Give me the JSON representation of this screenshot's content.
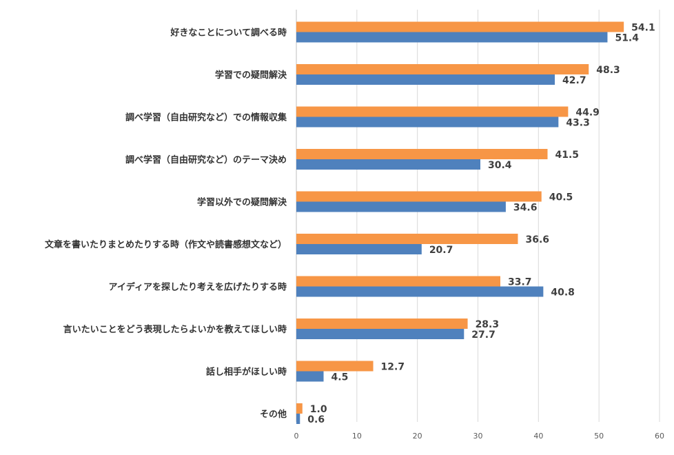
{
  "chart_data": {
    "type": "bar",
    "orientation": "horizontal",
    "title": "",
    "xlabel": "",
    "ylabel": "",
    "xlim": [
      0,
      60
    ],
    "x_ticks": [
      0,
      10,
      20,
      30,
      40,
      50,
      60
    ],
    "grid": true,
    "categories": [
      "好きなことについて調べる時",
      "学習での疑問解決",
      "調べ学習（自由研究など）での情報収集",
      "調べ学習（自由研究など）のテーマ決め",
      "学習以外での疑問解決",
      "文章を書いたりまとめたりする時（作文や読書感想文など）",
      "アイディアを探したり考えを広げたりする時",
      "言いたいことをどう表現したらよいかを教えてほしい時",
      "話し相手がほしい時",
      "その他"
    ],
    "series": [
      {
        "name": "series-orange",
        "color": "#F79646",
        "values": [
          54.1,
          48.3,
          44.9,
          41.5,
          40.5,
          36.6,
          33.7,
          28.3,
          12.7,
          1.0
        ]
      },
      {
        "name": "series-blue",
        "color": "#4F81BD",
        "values": [
          51.4,
          42.7,
          43.3,
          30.4,
          34.6,
          20.7,
          40.8,
          27.7,
          4.5,
          0.6
        ]
      }
    ]
  }
}
